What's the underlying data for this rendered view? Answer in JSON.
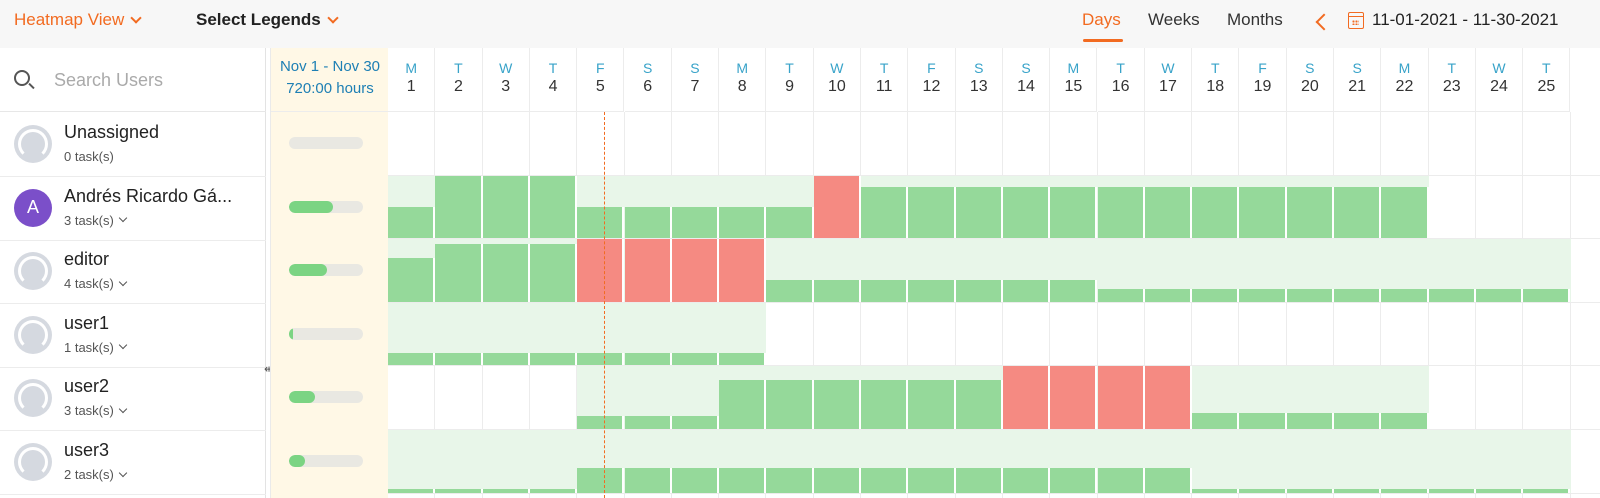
{
  "toolbar": {
    "view_label": "Heatmap View",
    "legends_label": "Select Legends",
    "tabs": [
      {
        "label": "Days",
        "active": true
      },
      {
        "label": "Weeks",
        "active": false
      },
      {
        "label": "Months",
        "active": false
      }
    ],
    "date_range": "11-01-2021 - 11-30-2021"
  },
  "search": {
    "placeholder": "Search Users",
    "value": ""
  },
  "summary": {
    "range": "Nov 1 - Nov 30",
    "hours": "720:00 hours"
  },
  "days": [
    {
      "dow": "M",
      "day": "1"
    },
    {
      "dow": "T",
      "day": "2"
    },
    {
      "dow": "W",
      "day": "3"
    },
    {
      "dow": "T",
      "day": "4"
    },
    {
      "dow": "F",
      "day": "5"
    },
    {
      "dow": "S",
      "day": "6"
    },
    {
      "dow": "S",
      "day": "7"
    },
    {
      "dow": "M",
      "day": "8"
    },
    {
      "dow": "T",
      "day": "9"
    },
    {
      "dow": "W",
      "day": "10"
    },
    {
      "dow": "T",
      "day": "11"
    },
    {
      "dow": "F",
      "day": "12"
    },
    {
      "dow": "S",
      "day": "13"
    },
    {
      "dow": "S",
      "day": "14"
    },
    {
      "dow": "M",
      "day": "15"
    },
    {
      "dow": "T",
      "day": "16"
    },
    {
      "dow": "W",
      "day": "17"
    },
    {
      "dow": "T",
      "day": "18"
    },
    {
      "dow": "F",
      "day": "19"
    },
    {
      "dow": "S",
      "day": "20"
    },
    {
      "dow": "S",
      "day": "21"
    },
    {
      "dow": "M",
      "day": "22"
    },
    {
      "dow": "T",
      "day": "23"
    },
    {
      "dow": "W",
      "day": "24"
    },
    {
      "dow": "T",
      "day": "25"
    }
  ],
  "colors": {
    "accent": "#f26b21",
    "under": "#95d99a",
    "over": "#f58a82",
    "assigned_bg": "#e8f6e9",
    "summary_bg": "#fff8e6"
  },
  "users": [
    {
      "name": "Unassigned",
      "tasks": "0 task(s)",
      "avatar": "placeholder",
      "expandable": false,
      "utilization": 0,
      "load": []
    },
    {
      "name": "Andrés Ricardo Gá...",
      "tasks": "3 task(s)",
      "avatar": "A",
      "expandable": true,
      "utilization": 0.6,
      "load": [
        {
          "start": 0,
          "end": 22,
          "levels": [
            0.5,
            1,
            1,
            1,
            0.5,
            0.5,
            0.5,
            0.5,
            0.5,
            1.2,
            0.82,
            0.82,
            0.82,
            0.82,
            0.82,
            0.82,
            0.82,
            0.82,
            0.82,
            0.82,
            0.82,
            0.82
          ]
        }
      ]
    },
    {
      "name": "editor",
      "tasks": "4 task(s)",
      "avatar": "placeholder",
      "expandable": true,
      "utilization": 0.52,
      "load": [
        {
          "start": 0,
          "end": 25,
          "levels": [
            0.7,
            0.92,
            0.92,
            0.92,
            1.2,
            1.2,
            1.2,
            1.2,
            0.35,
            0.35,
            0.35,
            0.35,
            0.35,
            0.35,
            0.35,
            0.2,
            0.2,
            0.2,
            0.2,
            0.2,
            0.2,
            0.2,
            0.2,
            0.2,
            0.2
          ]
        }
      ]
    },
    {
      "name": "user1",
      "tasks": "1 task(s)",
      "avatar": "placeholder",
      "expandable": true,
      "utilization": 0.04,
      "load": [
        {
          "start": 0,
          "end": 8,
          "levels": [
            0.2,
            0.2,
            0.2,
            0.2,
            0.2,
            0.2,
            0.2,
            0.2
          ]
        }
      ]
    },
    {
      "name": "user2",
      "tasks": "3 task(s)",
      "avatar": "placeholder",
      "expandable": true,
      "utilization": 0.35,
      "load": [
        {
          "start": 4,
          "end": 22,
          "levels": [
            0.2,
            0.2,
            0.2,
            0.78,
            0.78,
            0.78,
            0.78,
            0.78,
            0.78,
            1.2,
            1.2,
            1.2,
            1.2,
            0.25,
            0.25,
            0.25,
            0.25,
            0.25
          ]
        }
      ]
    },
    {
      "name": "user3",
      "tasks": "2 task(s)",
      "avatar": "placeholder",
      "expandable": true,
      "utilization": 0.22,
      "load": [
        {
          "start": 0,
          "end": 25,
          "levels": [
            0.05,
            0.05,
            0.05,
            0.05,
            0.4,
            0.4,
            0.4,
            0.4,
            0.4,
            0.4,
            0.4,
            0.4,
            0.4,
            0.4,
            0.4,
            0.4,
            0.4,
            0.05,
            0.05,
            0.05,
            0.05,
            0.05,
            0.05,
            0.05,
            0.05
          ]
        }
      ]
    }
  ]
}
